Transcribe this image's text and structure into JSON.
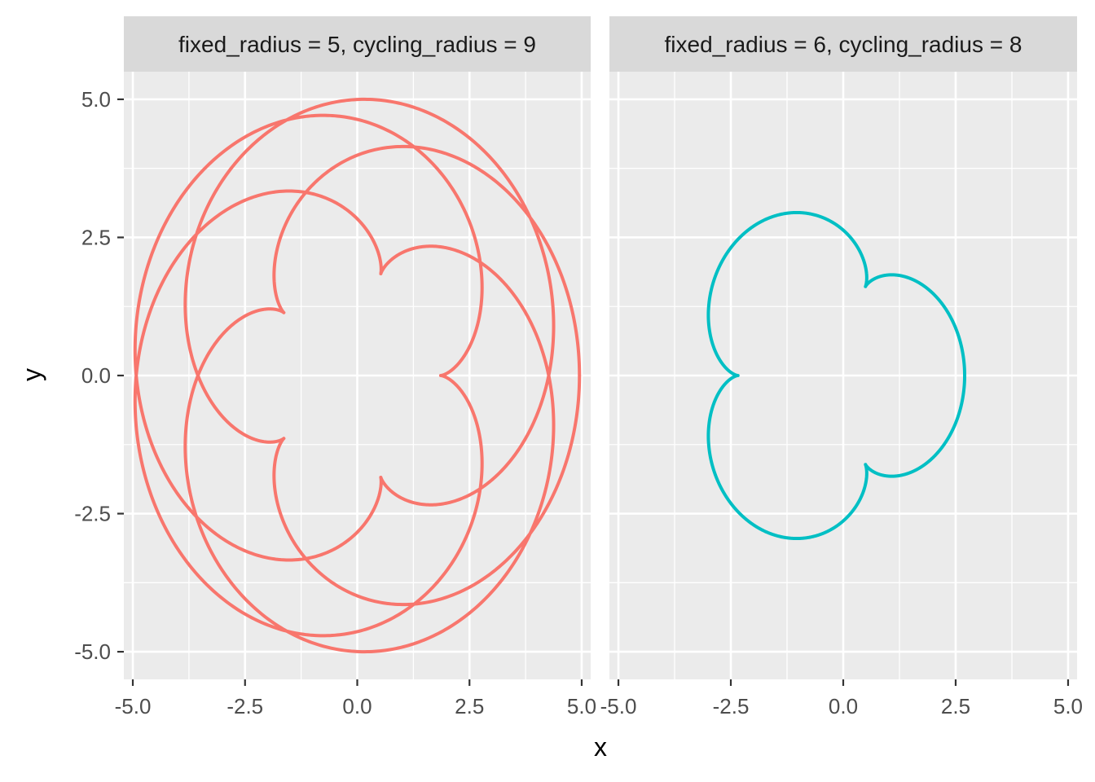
{
  "chart_data": {
    "type": "line",
    "xlabel": "x",
    "ylabel": "y",
    "xlim": [
      -5.2,
      5.2
    ],
    "ylim": [
      -5.5,
      5.5
    ],
    "x_ticks": [
      "-5.0",
      "-2.5",
      "0.0",
      "2.5",
      "5.0"
    ],
    "y_ticks": [
      "5.0",
      "2.5",
      "0.0",
      "-2.5",
      "-5.0"
    ],
    "x_tick_values": [
      -5,
      -2.5,
      0,
      2.5,
      5
    ],
    "y_tick_values": [
      5,
      2.5,
      0,
      -2.5,
      -5
    ],
    "grid": true,
    "legend": "none",
    "panels": [
      {
        "strip": "fixed_radius = 5, cycling_radius = 9",
        "fixed_radius": 5,
        "cycling_radius": 9,
        "color": "#F8766D",
        "x_range": [
          -4.95,
          4.95
        ],
        "y_range": [
          -5.0,
          5.0
        ]
      },
      {
        "strip": "fixed_radius = 6, cycling_radius = 8",
        "fixed_radius": 6,
        "cycling_radius": 8,
        "color": "#00BFC4",
        "x_range": [
          -3.0,
          2.7
        ],
        "y_range": [
          -2.95,
          2.95
        ]
      }
    ]
  }
}
